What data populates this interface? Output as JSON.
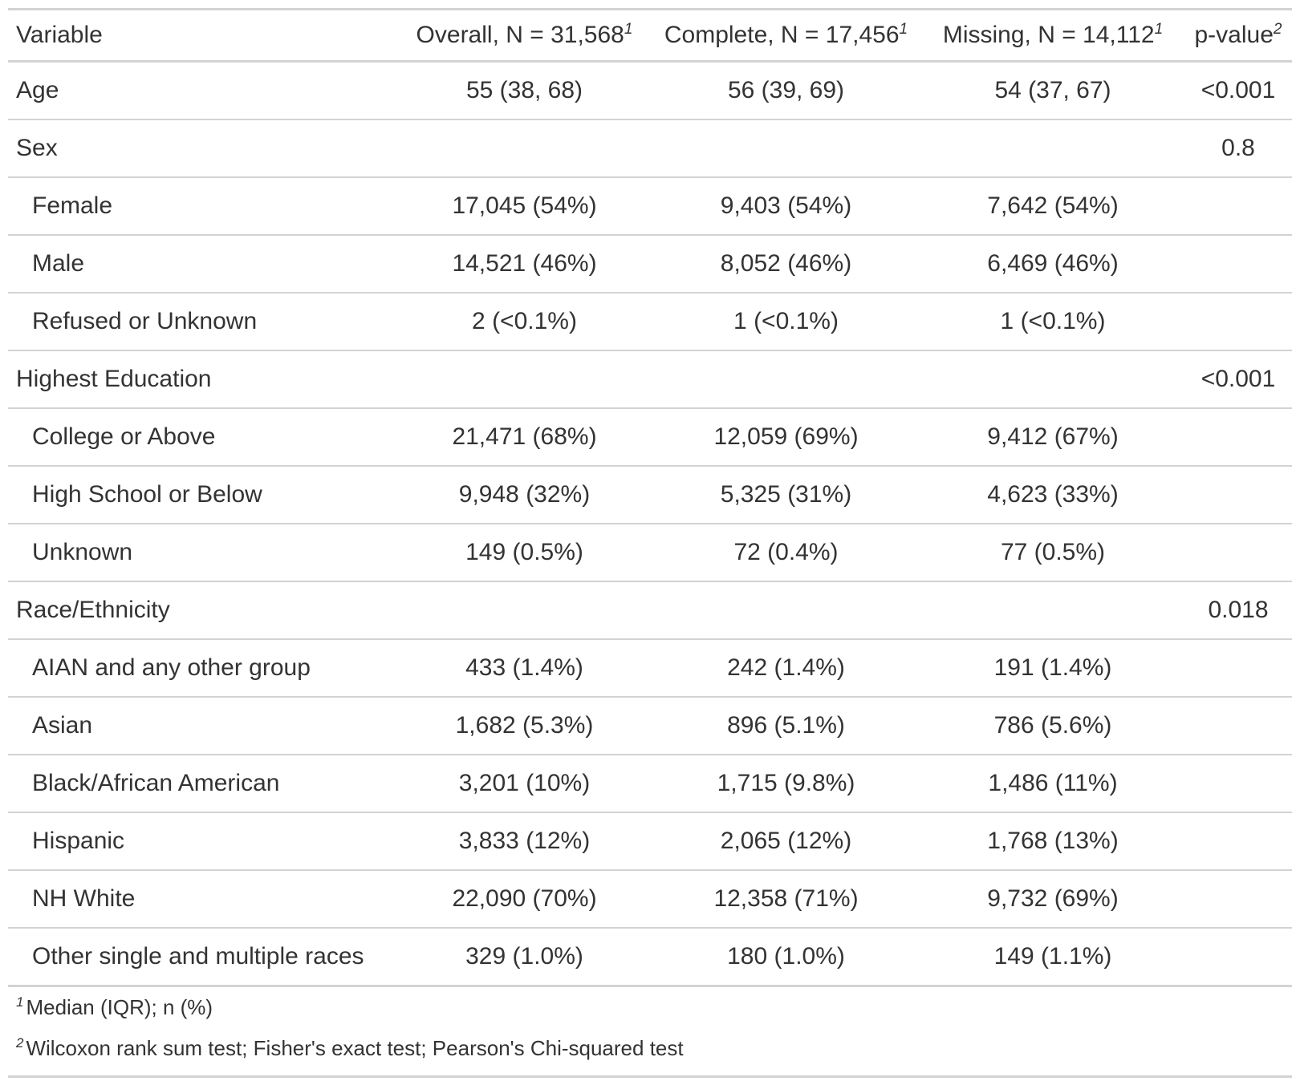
{
  "header": {
    "variable": "Variable",
    "overall": "Overall, N = 31,568",
    "complete": "Complete, N = 17,456",
    "missing": "Missing, N = 14,112",
    "pvalue": "p-value",
    "mark1": "1",
    "mark2": "2"
  },
  "rows": [
    {
      "label": "Age",
      "overall": "55 (38, 68)",
      "complete": "56 (39, 69)",
      "missing": "54 (37, 67)",
      "p": "<0.001"
    },
    {
      "label": "Sex",
      "overall": "",
      "complete": "",
      "missing": "",
      "p": "0.8"
    },
    {
      "label": "Female",
      "overall": "17,045 (54%)",
      "complete": "9,403 (54%)",
      "missing": "7,642 (54%)",
      "p": ""
    },
    {
      "label": "Male",
      "overall": "14,521 (46%)",
      "complete": "8,052 (46%)",
      "missing": "6,469 (46%)",
      "p": ""
    },
    {
      "label": "Refused or Unknown",
      "overall": "2 (<0.1%)",
      "complete": "1 (<0.1%)",
      "missing": "1 (<0.1%)",
      "p": ""
    },
    {
      "label": "Highest Education",
      "overall": "",
      "complete": "",
      "missing": "",
      "p": "<0.001"
    },
    {
      "label": "College or Above",
      "overall": "21,471 (68%)",
      "complete": "12,059 (69%)",
      "missing": "9,412 (67%)",
      "p": ""
    },
    {
      "label": "High School or Below",
      "overall": "9,948 (32%)",
      "complete": "5,325 (31%)",
      "missing": "4,623 (33%)",
      "p": ""
    },
    {
      "label": "Unknown",
      "overall": "149 (0.5%)",
      "complete": "72 (0.4%)",
      "missing": "77 (0.5%)",
      "p": ""
    },
    {
      "label": "Race/Ethnicity",
      "overall": "",
      "complete": "",
      "missing": "",
      "p": "0.018"
    },
    {
      "label": "AIAN and any other group",
      "overall": "433 (1.4%)",
      "complete": "242 (1.4%)",
      "missing": "191 (1.4%)",
      "p": ""
    },
    {
      "label": "Asian",
      "overall": "1,682 (5.3%)",
      "complete": "896 (5.1%)",
      "missing": "786 (5.6%)",
      "p": ""
    },
    {
      "label": "Black/African American",
      "overall": "3,201 (10%)",
      "complete": "1,715 (9.8%)",
      "missing": "1,486 (11%)",
      "p": ""
    },
    {
      "label": "Hispanic",
      "overall": "3,833 (12%)",
      "complete": "2,065 (12%)",
      "missing": "1,768 (13%)",
      "p": ""
    },
    {
      "label": "NH White",
      "overall": "22,090 (70%)",
      "complete": "12,358 (71%)",
      "missing": "9,732 (69%)",
      "p": ""
    },
    {
      "label": "Other single and multiple races",
      "overall": "329 (1.0%)",
      "complete": "180 (1.0%)",
      "missing": "149 (1.1%)",
      "p": ""
    }
  ],
  "footnotes": [
    {
      "mark": "1",
      "text": "Median (IQR); n (%)"
    },
    {
      "mark": "2",
      "text": "Wilcoxon rank sum test; Fisher's exact test; Pearson's Chi-squared test"
    }
  ],
  "colors": {
    "text": "#333333",
    "rule": "#d3d3d3"
  }
}
